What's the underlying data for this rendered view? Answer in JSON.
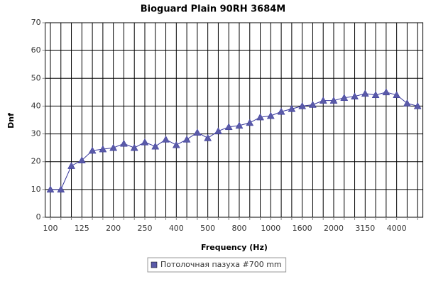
{
  "chart_data": {
    "type": "line",
    "title": "Bioguard Plain 90RH 3684M",
    "x_label": "Frequency (Hz)",
    "y_label": "Dnf",
    "categories": [
      "100",
      null,
      null,
      "125",
      null,
      null,
      "200",
      null,
      null,
      "250",
      null,
      null,
      "400",
      null,
      null,
      "500",
      null,
      null,
      "800",
      null,
      null,
      "1000",
      null,
      null,
      "1600",
      null,
      null,
      "2000",
      null,
      null,
      "3150",
      null,
      null,
      "4000",
      null,
      null
    ],
    "series": [
      {
        "name": "Потолочная пазуха #700 mm",
        "color": "#333399",
        "values": [
          10,
          10,
          18.5,
          20.5,
          24,
          24.5,
          25,
          26.5,
          25,
          27,
          25.5,
          28,
          26,
          28,
          30.5,
          28.5,
          31,
          32.5,
          33,
          34,
          36,
          36.5,
          38,
          39,
          40,
          40.5,
          42,
          42,
          43,
          43.5,
          44.5,
          44,
          45,
          44,
          41,
          40
        ]
      }
    ],
    "ylim": [
      0,
      70
    ],
    "yticks": [
      0,
      10,
      20,
      30,
      40,
      50,
      60,
      70
    ],
    "grid": true,
    "legend": "bottom"
  }
}
